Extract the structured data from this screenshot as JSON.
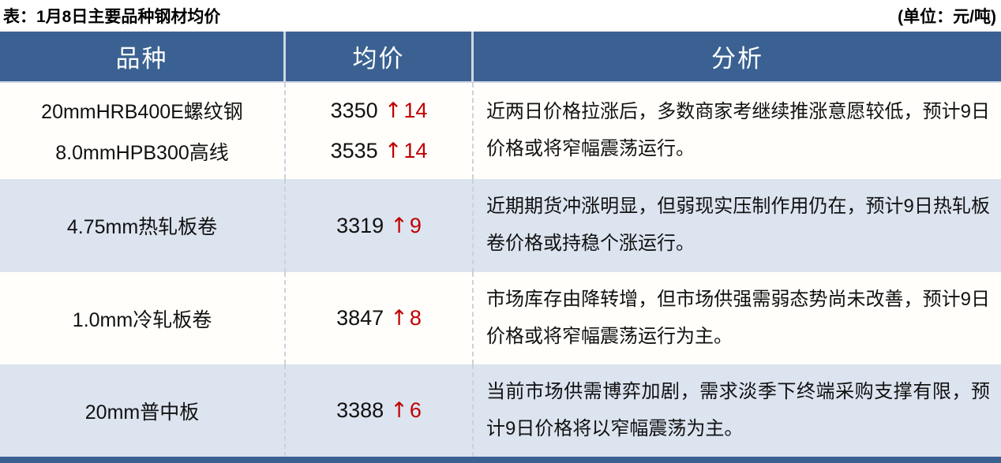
{
  "title": {
    "left": "表：1月8日主要品种钢材均价",
    "right": "(单位：元/吨)"
  },
  "headers": [
    "品种",
    "均价",
    "分析"
  ],
  "icons": {
    "up_arrow": "↑"
  },
  "colors": {
    "header_bg": "#3a6191",
    "stripe_bg": "#dce4ef",
    "white_bg": "#fffefa",
    "change_red": "#c00000",
    "bottom_bar": "#3a6191",
    "header_text": "#ffffff",
    "body_text": "#111111"
  },
  "sections": [
    {
      "products": [
        {
          "name": "20mmHRB400E螺纹钢",
          "price": "3350",
          "change": "14"
        },
        {
          "name": "8.0mmHPB300高线",
          "price": "3535",
          "change": "14"
        }
      ],
      "analysis": "近两日价格拉涨后，多数商家考继续推涨意愿较低，预计9日价格或将窄幅震荡运行。"
    },
    {
      "products": [
        {
          "name": "4.75mm热轧板卷",
          "price": "3319",
          "change": "9"
        }
      ],
      "analysis": "近期期货冲涨明显，但弱现实压制作用仍在，预计9日热轧板卷价格或持稳个涨运行。"
    },
    {
      "products": [
        {
          "name": "1.0mm冷轧板卷",
          "price": "3847",
          "change": "8"
        }
      ],
      "analysis": "市场库存由降转增，但市场供强需弱态势尚未改善，预计9日价格或将窄幅震荡运行为主。"
    },
    {
      "products": [
        {
          "name": "20mm普中板",
          "price": "3388",
          "change": "6"
        }
      ],
      "analysis": "当前市场供需博弈加剧，需求淡季下终端采购支撑有限，预计9日价格将以窄幅震荡为主。"
    }
  ]
}
